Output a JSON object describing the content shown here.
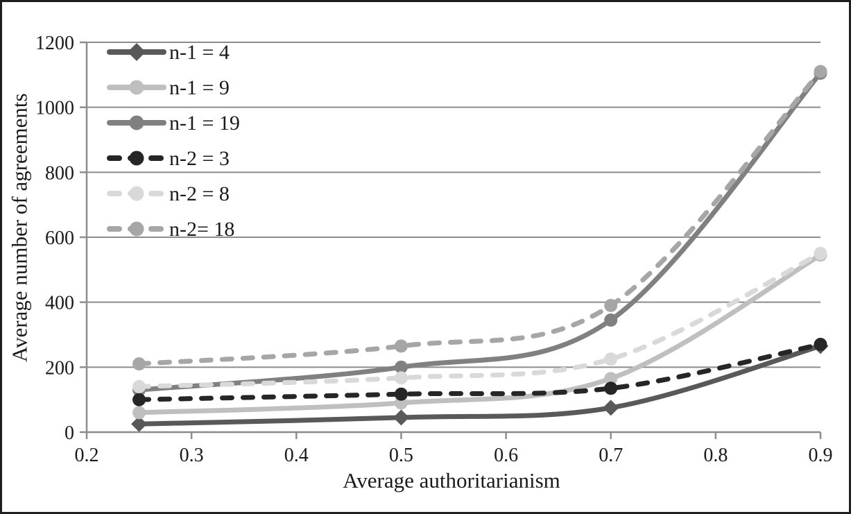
{
  "chart_data": {
    "type": "line",
    "title": "",
    "xlabel": "Average authoritarianism",
    "ylabel": "Average number of agreements",
    "x": [
      0.25,
      0.5,
      0.7,
      0.9
    ],
    "xlim": [
      0.2,
      0.9
    ],
    "ylim": [
      0,
      1200
    ],
    "grid": true,
    "legend_position": "top-left-inside",
    "xticks": [
      {
        "v": 0.2,
        "label": "0.2"
      },
      {
        "v": 0.3,
        "label": "0.3"
      },
      {
        "v": 0.4,
        "label": "0.4"
      },
      {
        "v": 0.5,
        "label": "0.5"
      },
      {
        "v": 0.6,
        "label": "0.6"
      },
      {
        "v": 0.7,
        "label": "0.7"
      },
      {
        "v": 0.8,
        "label": "0.8"
      },
      {
        "v": 0.9,
        "label": "0.9"
      }
    ],
    "yticks": [
      {
        "v": 0,
        "label": "0"
      },
      {
        "v": 200,
        "label": "200"
      },
      {
        "v": 400,
        "label": "400"
      },
      {
        "v": 600,
        "label": "600"
      },
      {
        "v": 800,
        "label": "800"
      },
      {
        "v": 1000,
        "label": "1000"
      },
      {
        "v": 1200,
        "label": "1200"
      }
    ],
    "series": [
      {
        "name": "n-1 = 4",
        "values": [
          25,
          45,
          75,
          265
        ],
        "color": "#595959",
        "style": "solid",
        "marker": "diamond"
      },
      {
        "name": "n-1 = 9",
        "values": [
          60,
          90,
          165,
          545
        ],
        "color": "#bfbfbf",
        "style": "solid",
        "marker": "circle"
      },
      {
        "name": "n-1 = 19",
        "values": [
          130,
          200,
          345,
          1105
        ],
        "color": "#808080",
        "style": "solid",
        "marker": "circle"
      },
      {
        "name": "n-2 = 3",
        "values": [
          100,
          117,
          135,
          270
        ],
        "color": "#262626",
        "style": "dashed",
        "marker": "circle"
      },
      {
        "name": "n-2 = 8",
        "values": [
          140,
          167,
          225,
          550
        ],
        "color": "#d9d9d9",
        "style": "dashed",
        "marker": "circle"
      },
      {
        "name": "n-2= 18",
        "values": [
          210,
          265,
          390,
          1110
        ],
        "color": "#a6a6a6",
        "style": "dashed",
        "marker": "circle"
      }
    ],
    "colors": {
      "grid": "#8c8c8c",
      "axis": "#8c8c8c",
      "text": "#1a1a1a",
      "border": "#000000",
      "background": "#ffffff"
    }
  }
}
